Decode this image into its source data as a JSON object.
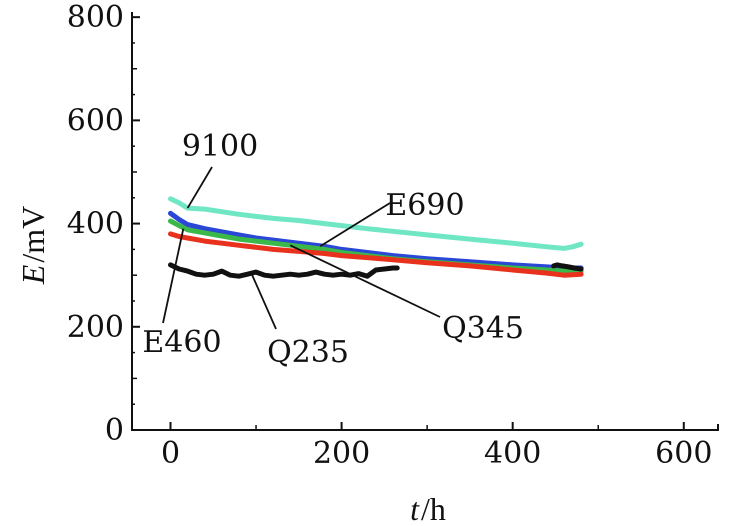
{
  "chart_data": {
    "type": "line",
    "title": "",
    "xlabel": {
      "var": "t",
      "unit": "h"
    },
    "ylabel": {
      "var": "E",
      "unit": "mV"
    },
    "xlim": [
      -45,
      640
    ],
    "ylim": [
      0,
      810
    ],
    "xticks": [
      0,
      200,
      400,
      600
    ],
    "yticks": [
      0,
      200,
      400,
      600,
      800
    ],
    "xtick_labels": [
      "0",
      "200",
      "400",
      "600"
    ],
    "ytick_labels": [
      "0",
      "200",
      "400",
      "600",
      "800"
    ],
    "grid": false,
    "series": [
      {
        "name": "9100",
        "color": "#6fe6c4",
        "x": [
          0,
          10,
          20,
          40,
          60,
          80,
          100,
          120,
          150,
          180,
          200,
          230,
          260,
          300,
          350,
          400,
          440,
          460,
          470,
          480
        ],
        "y": [
          448,
          440,
          430,
          428,
          423,
          418,
          414,
          410,
          406,
          400,
          396,
          390,
          385,
          378,
          370,
          362,
          355,
          352,
          355,
          360
        ]
      },
      {
        "name": "E690",
        "color": "#2a47d6",
        "x": [
          0,
          10,
          20,
          40,
          60,
          80,
          100,
          120,
          150,
          180,
          200,
          230,
          260,
          300,
          350,
          400,
          440,
          460,
          480
        ],
        "y": [
          420,
          408,
          398,
          390,
          384,
          378,
          372,
          368,
          362,
          356,
          350,
          344,
          338,
          332,
          326,
          320,
          316,
          314,
          314
        ]
      },
      {
        "name": "Q345",
        "color": "#3bb84a",
        "x": [
          0,
          10,
          20,
          40,
          60,
          80,
          100,
          120,
          150,
          180,
          200,
          230,
          260,
          300,
          350,
          400,
          440,
          460,
          480
        ],
        "y": [
          405,
          396,
          388,
          382,
          376,
          370,
          366,
          362,
          356,
          350,
          344,
          338,
          332,
          326,
          320,
          314,
          310,
          308,
          308
        ]
      },
      {
        "name": "E460",
        "color": "#e8321e",
        "x": [
          0,
          10,
          20,
          40,
          60,
          80,
          100,
          120,
          150,
          180,
          200,
          230,
          260,
          300,
          350,
          400,
          440,
          460,
          480
        ],
        "y": [
          380,
          375,
          372,
          366,
          362,
          358,
          354,
          350,
          346,
          342,
          338,
          334,
          330,
          324,
          318,
          310,
          304,
          300,
          302
        ]
      },
      {
        "name": "Q235",
        "color": "#111111",
        "segments": [
          {
            "x": [
              0,
              10,
              20,
              30,
              40,
              50,
              60,
              70,
              80,
              90,
              100,
              110,
              120,
              130,
              140,
              150,
              160,
              170,
              180,
              190,
              200,
              210,
              220,
              230,
              240,
              250,
              260,
              265
            ],
            "y": [
              320,
              312,
              308,
              302,
              300,
              302,
              308,
              300,
              298,
              302,
              306,
              300,
              298,
              300,
              302,
              300,
              302,
              306,
              302,
              300,
              302,
              300,
              303,
              298,
              310,
              312,
              314,
              314
            ]
          },
          {
            "x": [
              448,
              452,
              458,
              465,
              472,
              480
            ],
            "y": [
              318,
              320,
              318,
              316,
              314,
              312
            ]
          }
        ]
      }
    ],
    "annotations": [
      {
        "text": "9100",
        "series": "9100",
        "point_at": [
          20,
          430
        ]
      },
      {
        "text": "E690",
        "series": "E690",
        "point_at": [
          175,
          356
        ]
      },
      {
        "text": "Q345",
        "series": "Q345",
        "point_at": [
          140,
          358
        ]
      },
      {
        "text": "E460",
        "series": "E460",
        "point_at": [
          15,
          390
        ]
      },
      {
        "text": "Q235",
        "series": "Q235",
        "point_at": [
          95,
          302
        ]
      }
    ]
  }
}
